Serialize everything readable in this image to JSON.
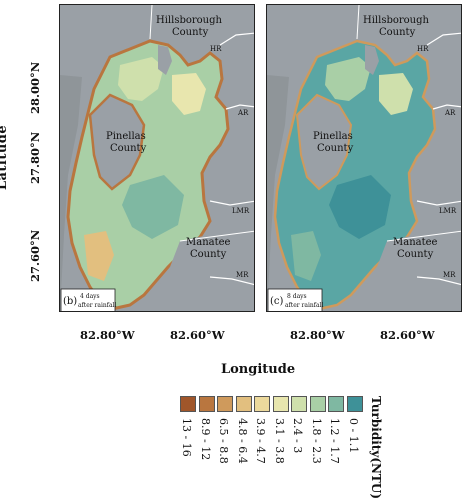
{
  "axes": {
    "y_label": "Latitude",
    "x_label": "Longitude",
    "y_ticks": [
      "28.00°N",
      "27.80°N",
      "27.60°N"
    ],
    "x_ticks_left": [
      "82.80°W",
      "82.60°W"
    ],
    "x_ticks_right": [
      "82.80°W",
      "82.60°W"
    ]
  },
  "panels": [
    {
      "id": "b",
      "tag": "(b)",
      "note_line1": "4 days",
      "note_line2": "after rainfall",
      "counties": [
        "Hillsborough",
        "County",
        "Pinellas",
        "County",
        "Manatee",
        "County"
      ],
      "rivers": [
        "HR",
        "AR",
        "LMR",
        "MR"
      ]
    },
    {
      "id": "c",
      "tag": "(c)",
      "note_line1": "8 days",
      "note_line2": "after rainfall",
      "counties": [
        "Hillsborough",
        "County",
        "Pinellas",
        "County",
        "Manatee",
        "County"
      ],
      "rivers": [
        "HR",
        "AR",
        "LMR",
        "MR"
      ]
    }
  ],
  "legend": {
    "title": "Turbidity(NTU)",
    "classes": [
      {
        "label": "13 - 16",
        "color": "#a0562a"
      },
      {
        "label": "8.9 - 12",
        "color": "#b9763f"
      },
      {
        "label": "6.5 - 8.8",
        "color": "#cf9a5c"
      },
      {
        "label": "4.8 - 6.4",
        "color": "#e2bf7f"
      },
      {
        "label": "3.9 - 4.7",
        "color": "#ecd99c"
      },
      {
        "label": "3.1 - 3.8",
        "color": "#e8e6ae"
      },
      {
        "label": "2.4 - 3",
        "color": "#cfe0ac"
      },
      {
        "label": "1.8 - 2.3",
        "color": "#a9cfa6"
      },
      {
        "label": "1.2 - 1.7",
        "color": "#7fb8a2"
      },
      {
        "label": "0 - 1.1",
        "color": "#3e9198"
      }
    ]
  },
  "colors": {
    "land": "#9aa0a6",
    "water_b": "#a9cfa6",
    "water_c": "#5aa6a4",
    "shore_high": "#b9763f"
  }
}
